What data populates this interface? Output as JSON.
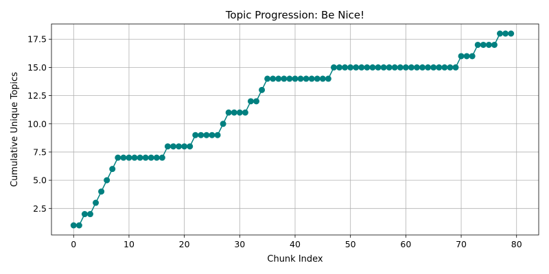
{
  "chart_data": {
    "type": "line",
    "title": "Topic Progression: Be Nice!",
    "xlabel": "Chunk Index",
    "ylabel": "Cumulative Unique Topics",
    "xlim": [
      -4,
      84
    ],
    "ylim": [
      0.15,
      18.85
    ],
    "xticks": [
      0,
      10,
      20,
      30,
      40,
      50,
      60,
      70,
      80
    ],
    "xtick_labels": [
      "0",
      "10",
      "20",
      "30",
      "40",
      "50",
      "60",
      "70",
      "80"
    ],
    "yticks": [
      2.5,
      5.0,
      7.5,
      10.0,
      12.5,
      15.0,
      17.5
    ],
    "ytick_labels": [
      "2.5",
      "5.0",
      "7.5",
      "10.0",
      "12.5",
      "15.0",
      "17.5"
    ],
    "grid": true,
    "color": "#008080",
    "marker": "circle",
    "series": [
      {
        "x": [
          0,
          1,
          2,
          3,
          4,
          5,
          6,
          7,
          8,
          9,
          10,
          11,
          12,
          13,
          14,
          15,
          16,
          17,
          18,
          19,
          20,
          21,
          22,
          23,
          24,
          25,
          26,
          27,
          28,
          29,
          30,
          31,
          32,
          33,
          34,
          35,
          36,
          37,
          38,
          39,
          40,
          41,
          42,
          43,
          44,
          45,
          46,
          47,
          48,
          49,
          50,
          51,
          52,
          53,
          54,
          55,
          56,
          57,
          58,
          59,
          60,
          61,
          62,
          63,
          64,
          65,
          66,
          67,
          68,
          69,
          70,
          71,
          72,
          73,
          74,
          75,
          76,
          77,
          78,
          79
        ],
        "y": [
          1,
          1,
          2,
          2,
          3,
          4,
          5,
          6,
          7,
          7,
          7,
          7,
          7,
          7,
          7,
          7,
          7,
          8,
          8,
          8,
          8,
          8,
          9,
          9,
          9,
          9,
          9,
          10,
          11,
          11,
          11,
          11,
          12,
          12,
          13,
          14,
          14,
          14,
          14,
          14,
          14,
          14,
          14,
          14,
          14,
          14,
          14,
          15,
          15,
          15,
          15,
          15,
          15,
          15,
          15,
          15,
          15,
          15,
          15,
          15,
          15,
          15,
          15,
          15,
          15,
          15,
          15,
          15,
          15,
          15,
          16,
          16,
          16,
          17,
          17,
          17,
          17,
          18,
          18,
          18
        ]
      }
    ]
  }
}
